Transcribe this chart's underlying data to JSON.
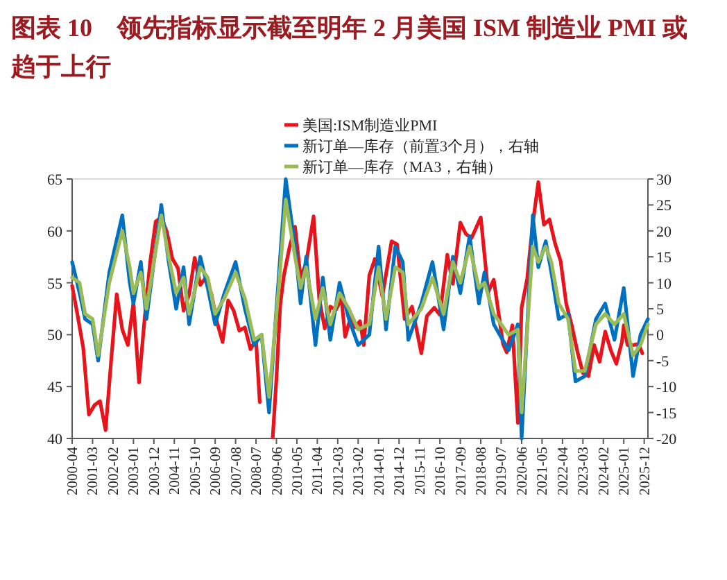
{
  "chart_data": {
    "type": "line",
    "title": "图表 10　领先指标显示截至明年 2 月美国 ISM 制造业 PMI 或趋于上行",
    "xlim": [
      "2000-04",
      "2026-02"
    ],
    "xticks": [
      "2000-04",
      "2001-03",
      "2002-02",
      "2003-01",
      "2003-12",
      "2004-11",
      "2005-10",
      "2006-09",
      "2007-08",
      "2008-07",
      "2009-06",
      "2010-05",
      "2011-04",
      "2012-03",
      "2013-02",
      "2014-01",
      "2014-12",
      "2015-11",
      "2016-10",
      "2017-09",
      "2018-08",
      "2019-07",
      "2020-06",
      "2021-05",
      "2022-04",
      "2023-03",
      "2024-02",
      "2025-01",
      "2025-12"
    ],
    "ylim": [
      40,
      65
    ],
    "yticks": [
      40,
      45,
      50,
      55,
      60,
      65
    ],
    "y2lim": [
      -20,
      30
    ],
    "y2ticks": [
      -20,
      -15,
      -10,
      -5,
      0,
      5,
      10,
      15,
      20,
      25,
      30
    ],
    "grid": false,
    "legend": "top",
    "marker": "none",
    "line_style": "solid",
    "series": [
      {
        "name": "美国:ISM制造业PMI",
        "color": "#e8141c",
        "x": [
          "2000-04",
          "2000-07",
          "2000-10",
          "2001-01",
          "2001-04",
          "2001-07",
          "2001-10",
          "2002-01",
          "2002-04",
          "2002-07",
          "2002-10",
          "2003-01",
          "2003-04",
          "2003-07",
          "2003-10",
          "2004-01",
          "2004-04",
          "2004-07",
          "2004-10",
          "2005-01",
          "2005-04",
          "2005-07",
          "2005-10",
          "2006-01",
          "2006-04",
          "2006-07",
          "2006-10",
          "2007-01",
          "2007-04",
          "2007-07",
          "2007-10",
          "2008-01",
          "2008-04",
          "2008-07",
          "2008-09",
          "2008-10",
          "2009-01",
          "2009-04",
          "2009-06",
          "2009-08",
          "2009-10",
          "2010-01",
          "2010-04",
          "2010-07",
          "2010-10",
          "2011-02",
          "2011-05",
          "2011-08",
          "2011-11",
          "2012-02",
          "2012-05",
          "2012-07",
          "2012-10",
          "2012-12",
          "2013-03",
          "2013-05",
          "2013-08",
          "2013-11",
          "2014-03",
          "2014-08",
          "2014-11",
          "2015-03",
          "2015-07",
          "2015-12",
          "2016-03",
          "2016-07",
          "2016-10",
          "2017-02",
          "2017-05",
          "2017-09",
          "2017-12",
          "2018-03",
          "2018-08",
          "2018-12",
          "2019-03",
          "2019-08",
          "2019-10",
          "2020-01",
          "2020-04",
          "2020-06",
          "2020-09",
          "2020-12",
          "2021-03",
          "2021-06",
          "2021-09",
          "2021-12",
          "2022-03",
          "2022-06",
          "2022-09",
          "2022-12",
          "2023-03",
          "2023-06",
          "2023-09",
          "2023-12",
          "2024-03",
          "2024-06",
          "2024-09",
          "2024-12",
          "2025-01",
          "2025-03",
          "2025-06",
          "2025-09",
          "2025-11"
        ],
        "values": [
          54.7,
          51.8,
          48.7,
          42.3,
          43.2,
          43.6,
          40.8,
          47.5,
          53.9,
          50.5,
          49.0,
          53.1,
          45.4,
          51.5,
          57.0,
          60.9,
          61.3,
          59.9,
          57.3,
          56.4,
          52.3,
          53.9,
          57.4,
          54.8,
          55.5,
          53.9,
          51.2,
          49.3,
          53.3,
          52.3,
          50.4,
          50.7,
          48.6,
          49.5,
          43.5,
          null,
          null,
          40.1,
          45.8,
          52.8,
          55.7,
          58.4,
          60.4,
          55.5,
          56.9,
          61.4,
          53.5,
          50.6,
          52.7,
          52.4,
          53.5,
          49.8,
          51.7,
          50.7,
          51.3,
          49.0,
          55.7,
          57.3,
          53.7,
          59.0,
          58.7,
          51.5,
          52.7,
          48.2,
          51.8,
          52.6,
          51.9,
          57.7,
          54.9,
          60.8,
          59.7,
          59.3,
          61.3,
          54.1,
          55.3,
          49.1,
          48.3,
          50.9,
          41.5,
          52.6,
          55.4,
          60.7,
          64.7,
          60.6,
          61.1,
          58.8,
          57.1,
          53.0,
          50.9,
          48.4,
          46.3,
          46.0,
          49.0,
          47.4,
          50.3,
          48.5,
          47.2,
          49.3,
          50.9,
          49.0,
          49.0,
          49.1,
          48.2
        ]
      },
      {
        "name": "新订单—库存（前置3个月），右轴",
        "color": "#0070c0",
        "axis": "y2",
        "x": [
          "2000-04",
          "2000-08",
          "2000-11",
          "2001-03",
          "2001-06",
          "2001-12",
          "2002-07",
          "2002-11",
          "2003-01",
          "2003-05",
          "2003-08",
          "2004-04",
          "2004-08",
          "2004-12",
          "2005-04",
          "2005-07",
          "2006-01",
          "2006-05",
          "2006-09",
          "2007-02",
          "2007-08",
          "2008-01",
          "2008-06",
          "2008-10",
          "2009-02",
          "2009-07",
          "2009-11",
          "2010-04",
          "2010-07",
          "2010-10",
          "2011-03",
          "2011-07",
          "2011-11",
          "2012-04",
          "2012-09",
          "2013-02",
          "2013-08",
          "2014-01",
          "2014-05",
          "2014-10",
          "2015-02",
          "2015-05",
          "2015-12",
          "2016-06",
          "2016-12",
          "2017-05",
          "2017-09",
          "2018-02",
          "2018-07",
          "2018-10",
          "2019-03",
          "2019-11",
          "2020-04",
          "2020-06",
          "2020-12",
          "2021-03",
          "2021-07",
          "2021-10",
          "2022-02",
          "2022-07",
          "2022-11",
          "2023-04",
          "2023-10",
          "2024-03",
          "2024-08",
          "2025-01",
          "2025-06",
          "2025-10",
          "2026-02"
        ],
        "values": [
          14,
          8,
          3,
          2,
          -5,
          12,
          23,
          10,
          6,
          14,
          3,
          25,
          14,
          5,
          13,
          2,
          15,
          9,
          2,
          8,
          14,
          5,
          -2,
          0,
          -15,
          10,
          30,
          17,
          6,
          15,
          -2,
          11,
          -1,
          10,
          3,
          -2,
          0,
          17,
          1,
          17,
          14,
          -1,
          6,
          14,
          1,
          15,
          8,
          19,
          6,
          12,
          2,
          -3,
          2,
          -20,
          23,
          13,
          18,
          12,
          3,
          4,
          -9,
          -8,
          3,
          6,
          -1,
          9,
          -8,
          0,
          3
        ]
      },
      {
        "name": "新订单—库存（MA3，右轴）",
        "color": "#9bbb59",
        "axis": "y2",
        "x": [
          "2000-04",
          "2000-08",
          "2000-11",
          "2001-03",
          "2001-06",
          "2001-12",
          "2002-07",
          "2002-11",
          "2003-01",
          "2003-05",
          "2003-08",
          "2004-04",
          "2004-08",
          "2004-12",
          "2005-04",
          "2005-07",
          "2006-01",
          "2006-05",
          "2006-09",
          "2007-02",
          "2007-08",
          "2008-01",
          "2008-06",
          "2008-10",
          "2009-02",
          "2009-07",
          "2009-11",
          "2010-04",
          "2010-07",
          "2010-10",
          "2011-03",
          "2011-07",
          "2011-11",
          "2012-04",
          "2012-09",
          "2013-02",
          "2013-08",
          "2014-01",
          "2014-05",
          "2014-10",
          "2015-02",
          "2015-05",
          "2015-12",
          "2016-06",
          "2016-12",
          "2017-05",
          "2017-09",
          "2018-02",
          "2018-07",
          "2018-10",
          "2019-03",
          "2019-11",
          "2020-04",
          "2020-06",
          "2020-12",
          "2021-03",
          "2021-07",
          "2021-10",
          "2022-02",
          "2022-07",
          "2022-11",
          "2023-04",
          "2023-10",
          "2024-03",
          "2024-08",
          "2025-01",
          "2025-06",
          "2025-10",
          "2026-02"
        ],
        "values": [
          11,
          10,
          4,
          3,
          -4,
          10,
          20,
          13,
          8,
          12,
          5,
          23,
          15,
          8,
          11,
          4,
          13,
          11,
          4,
          7,
          12,
          7,
          -1,
          0,
          -12,
          8,
          26,
          15,
          9,
          13,
          3,
          9,
          2,
          8,
          5,
          1,
          2,
          13,
          3,
          13,
          12,
          2,
          5,
          11,
          4,
          14,
          10,
          17,
          9,
          10,
          4,
          0,
          1,
          -15,
          17,
          14,
          17,
          14,
          6,
          3,
          -7,
          -7,
          2,
          4,
          2,
          4,
          -4,
          -2,
          2
        ]
      }
    ]
  }
}
